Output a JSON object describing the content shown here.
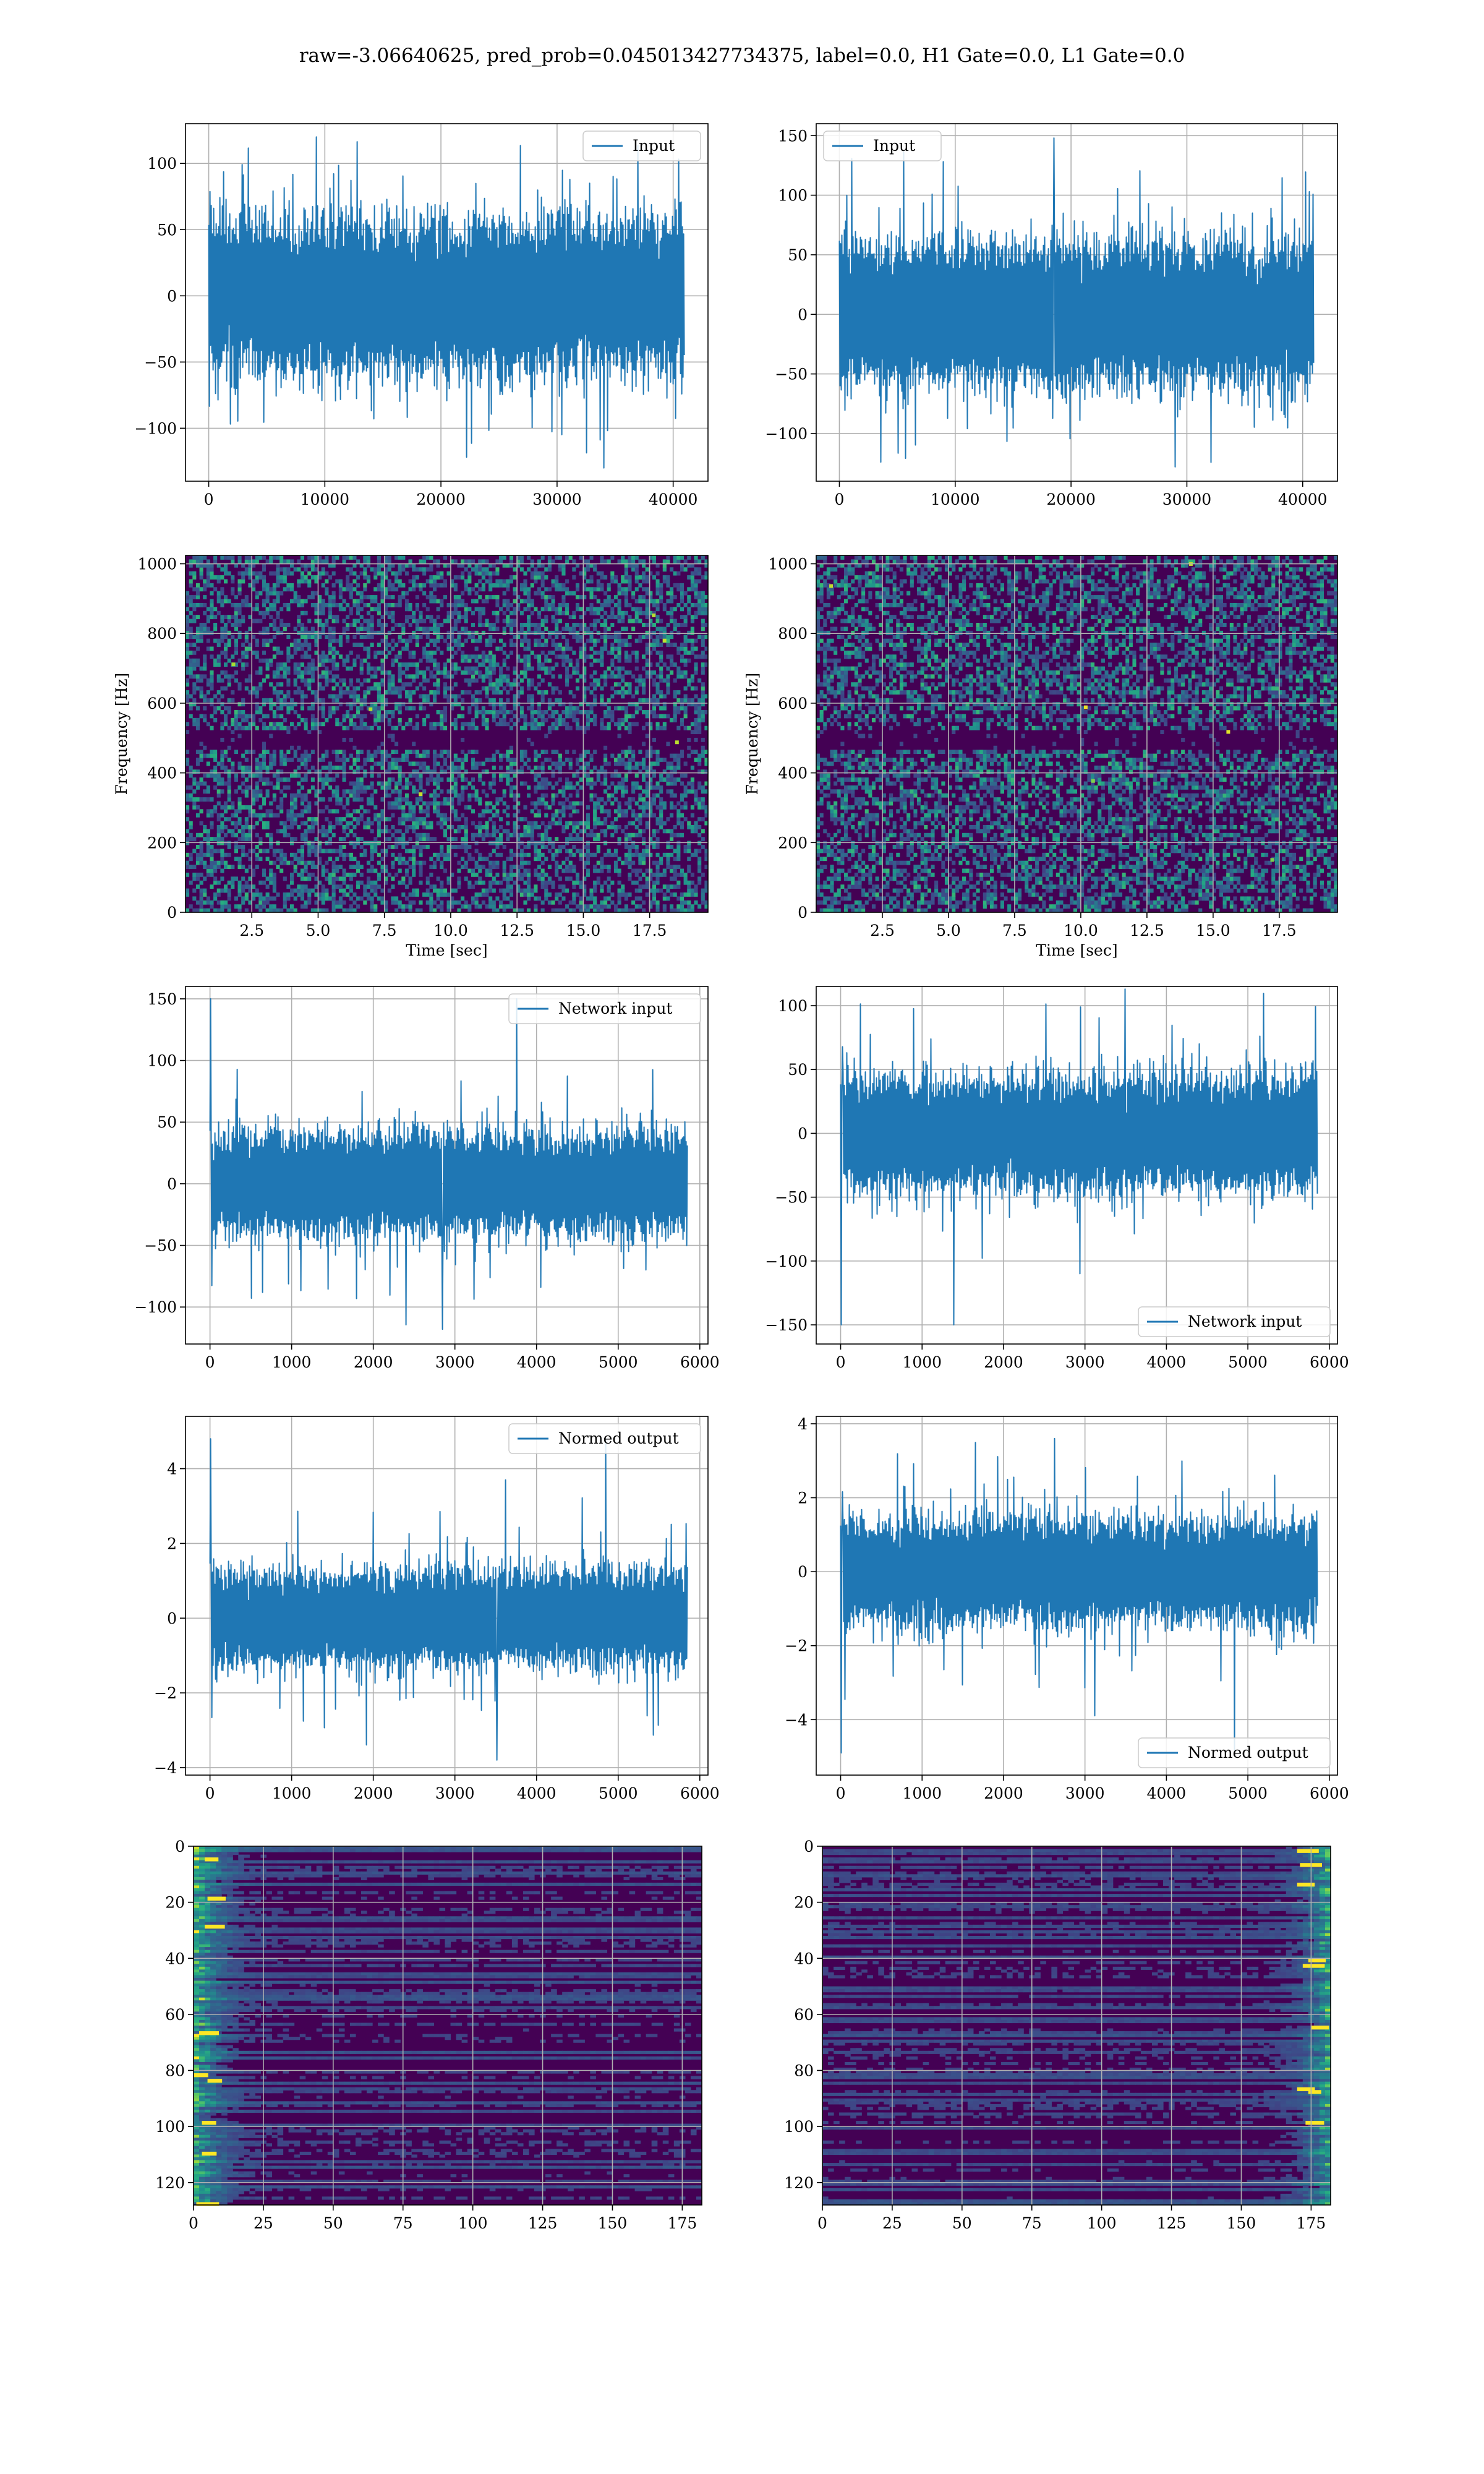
{
  "figure": {
    "suptitle": "raw=-3.06640625, pred_prob=0.045013427734375, label=0.0, H1 Gate=0.0, L1 Gate=0.0"
  },
  "colors": {
    "series": "#1f77b4",
    "grid": "#b0b0b0",
    "viridis_low": "#440154",
    "viridis_mid": "#21918c",
    "viridis_high": "#fde725"
  },
  "chart_data": [
    {
      "id": "input-h1",
      "type": "line",
      "title": "",
      "xlabel": "",
      "ylabel": "",
      "legend": "Input",
      "legend_position": "top-right",
      "xlim": [
        -2000,
        43000
      ],
      "ylim": [
        -140,
        130
      ],
      "xticks": [
        0,
        10000,
        20000,
        30000,
        40000
      ],
      "yticks": [
        -100,
        -50,
        0,
        50,
        100
      ],
      "series": [
        {
          "name": "Input",
          "x_range": [
            0,
            40960
          ],
          "core_amplitude": 62,
          "peak_amplitude": 118,
          "min": -130,
          "max": 120
        }
      ],
      "grid": true
    },
    {
      "id": "input-l1",
      "type": "line",
      "title": "",
      "xlabel": "",
      "ylabel": "",
      "legend": "Input",
      "legend_position": "top-left",
      "xlim": [
        -2000,
        43000
      ],
      "ylim": [
        -140,
        160
      ],
      "xticks": [
        0,
        10000,
        20000,
        30000,
        40000
      ],
      "yticks": [
        -100,
        -50,
        0,
        50,
        100,
        150
      ],
      "series": [
        {
          "name": "Input",
          "x_range": [
            0,
            40960
          ],
          "core_amplitude": 65,
          "peak_amplitude": 125,
          "min": -128,
          "max": 148
        }
      ],
      "grid": true
    },
    {
      "id": "spectrogram-h1",
      "type": "heatmap",
      "title": "",
      "xlabel": "Time [sec]",
      "ylabel": "Frequency [Hz]",
      "xlim": [
        0,
        19.7
      ],
      "ylim": [
        0,
        1024
      ],
      "xticks": [
        2.5,
        5.0,
        7.5,
        10.0,
        12.5,
        15.0,
        17.5
      ],
      "xtick_labels": [
        "2.5",
        "5.0",
        "7.5",
        "10.0",
        "12.5",
        "15.0",
        "17.5"
      ],
      "yticks": [
        0,
        200,
        400,
        600,
        800,
        1000
      ],
      "colormap": "viridis",
      "background_level": 0.15,
      "dark_band_hz": [
        470,
        520
      ],
      "grid": true
    },
    {
      "id": "spectrogram-l1",
      "type": "heatmap",
      "title": "",
      "xlabel": "Time [sec]",
      "ylabel": "Frequency [Hz]",
      "xlim": [
        0,
        19.7
      ],
      "ylim": [
        0,
        1024
      ],
      "xticks": [
        2.5,
        5.0,
        7.5,
        10.0,
        12.5,
        15.0,
        17.5
      ],
      "xtick_labels": [
        "2.5",
        "5.0",
        "7.5",
        "10.0",
        "12.5",
        "15.0",
        "17.5"
      ],
      "yticks": [
        0,
        200,
        400,
        600,
        800,
        1000
      ],
      "colormap": "viridis",
      "background_level": 0.15,
      "dark_band_hz": [
        470,
        520
      ],
      "grid": true
    },
    {
      "id": "network-input-h1",
      "type": "line",
      "title": "",
      "xlabel": "",
      "ylabel": "",
      "legend": "Network input",
      "legend_position": "top-right",
      "xlim": [
        -300,
        6100
      ],
      "ylim": [
        -130,
        160
      ],
      "xticks": [
        0,
        1000,
        2000,
        3000,
        4000,
        5000,
        6000
      ],
      "yticks": [
        -100,
        -50,
        0,
        50,
        100,
        150
      ],
      "series": [
        {
          "name": "Network input",
          "x_range": [
            0,
            5850
          ],
          "core_amplitude": 45,
          "peak_amplitude": 95,
          "min": -118,
          "max": 150
        }
      ],
      "grid": true
    },
    {
      "id": "network-input-l1",
      "type": "line",
      "title": "",
      "xlabel": "",
      "ylabel": "",
      "legend": "Network input",
      "legend_position": "bottom-right",
      "xlim": [
        -300,
        6100
      ],
      "ylim": [
        -165,
        115
      ],
      "xticks": [
        0,
        1000,
        2000,
        3000,
        4000,
        5000,
        6000
      ],
      "yticks": [
        -150,
        -100,
        -50,
        0,
        50,
        100
      ],
      "series": [
        {
          "name": "Network input",
          "x_range": [
            0,
            5850
          ],
          "core_amplitude": 48,
          "peak_amplitude": 105,
          "min": -150,
          "max": 113
        }
      ],
      "grid": true
    },
    {
      "id": "normed-output-h1",
      "type": "line",
      "title": "",
      "xlabel": "",
      "ylabel": "",
      "legend": "Normed output",
      "legend_position": "top-right",
      "xlim": [
        -300,
        6100
      ],
      "ylim": [
        -4.2,
        5.4
      ],
      "xticks": [
        0,
        1000,
        2000,
        3000,
        4000,
        5000,
        6000
      ],
      "yticks": [
        -4,
        -2,
        0,
        2,
        4
      ],
      "series": [
        {
          "name": "Normed output",
          "x_range": [
            0,
            5850
          ],
          "core_amplitude": 1.4,
          "peak_amplitude": 3.0,
          "min": -3.8,
          "max": 4.8
        }
      ],
      "grid": true
    },
    {
      "id": "normed-output-l1",
      "type": "line",
      "title": "",
      "xlabel": "",
      "ylabel": "",
      "legend": "Normed output",
      "legend_position": "bottom-right",
      "xlim": [
        -300,
        6100
      ],
      "ylim": [
        -5.5,
        4.2
      ],
      "xticks": [
        0,
        1000,
        2000,
        3000,
        4000,
        5000,
        6000
      ],
      "yticks": [
        -4,
        -2,
        0,
        2,
        4
      ],
      "series": [
        {
          "name": "Normed output",
          "x_range": [
            0,
            5850
          ],
          "core_amplitude": 1.5,
          "peak_amplitude": 3.2,
          "min": -4.9,
          "max": 3.6
        }
      ],
      "grid": true
    },
    {
      "id": "feature-map-h1",
      "type": "heatmap",
      "title": "",
      "xlabel": "",
      "ylabel": "",
      "xlim": [
        0,
        182
      ],
      "ylim": [
        128,
        0
      ],
      "xticks": [
        0,
        25,
        50,
        75,
        100,
        125,
        150,
        175
      ],
      "yticks": [
        0,
        20,
        40,
        60,
        80,
        100,
        120
      ],
      "colormap": "viridis",
      "rows": 128,
      "cols": 182,
      "bright_region_cols": [
        0,
        25
      ],
      "grid": true
    },
    {
      "id": "feature-map-l1",
      "type": "heatmap",
      "title": "",
      "xlabel": "",
      "ylabel": "",
      "xlim": [
        0,
        182
      ],
      "ylim": [
        128,
        0
      ],
      "xticks": [
        0,
        25,
        50,
        75,
        100,
        125,
        150,
        175
      ],
      "yticks": [
        0,
        20,
        40,
        60,
        80,
        100,
        120
      ],
      "colormap": "viridis",
      "rows": 128,
      "cols": 182,
      "bright_region_cols": [
        150,
        182
      ],
      "grid": true
    }
  ]
}
